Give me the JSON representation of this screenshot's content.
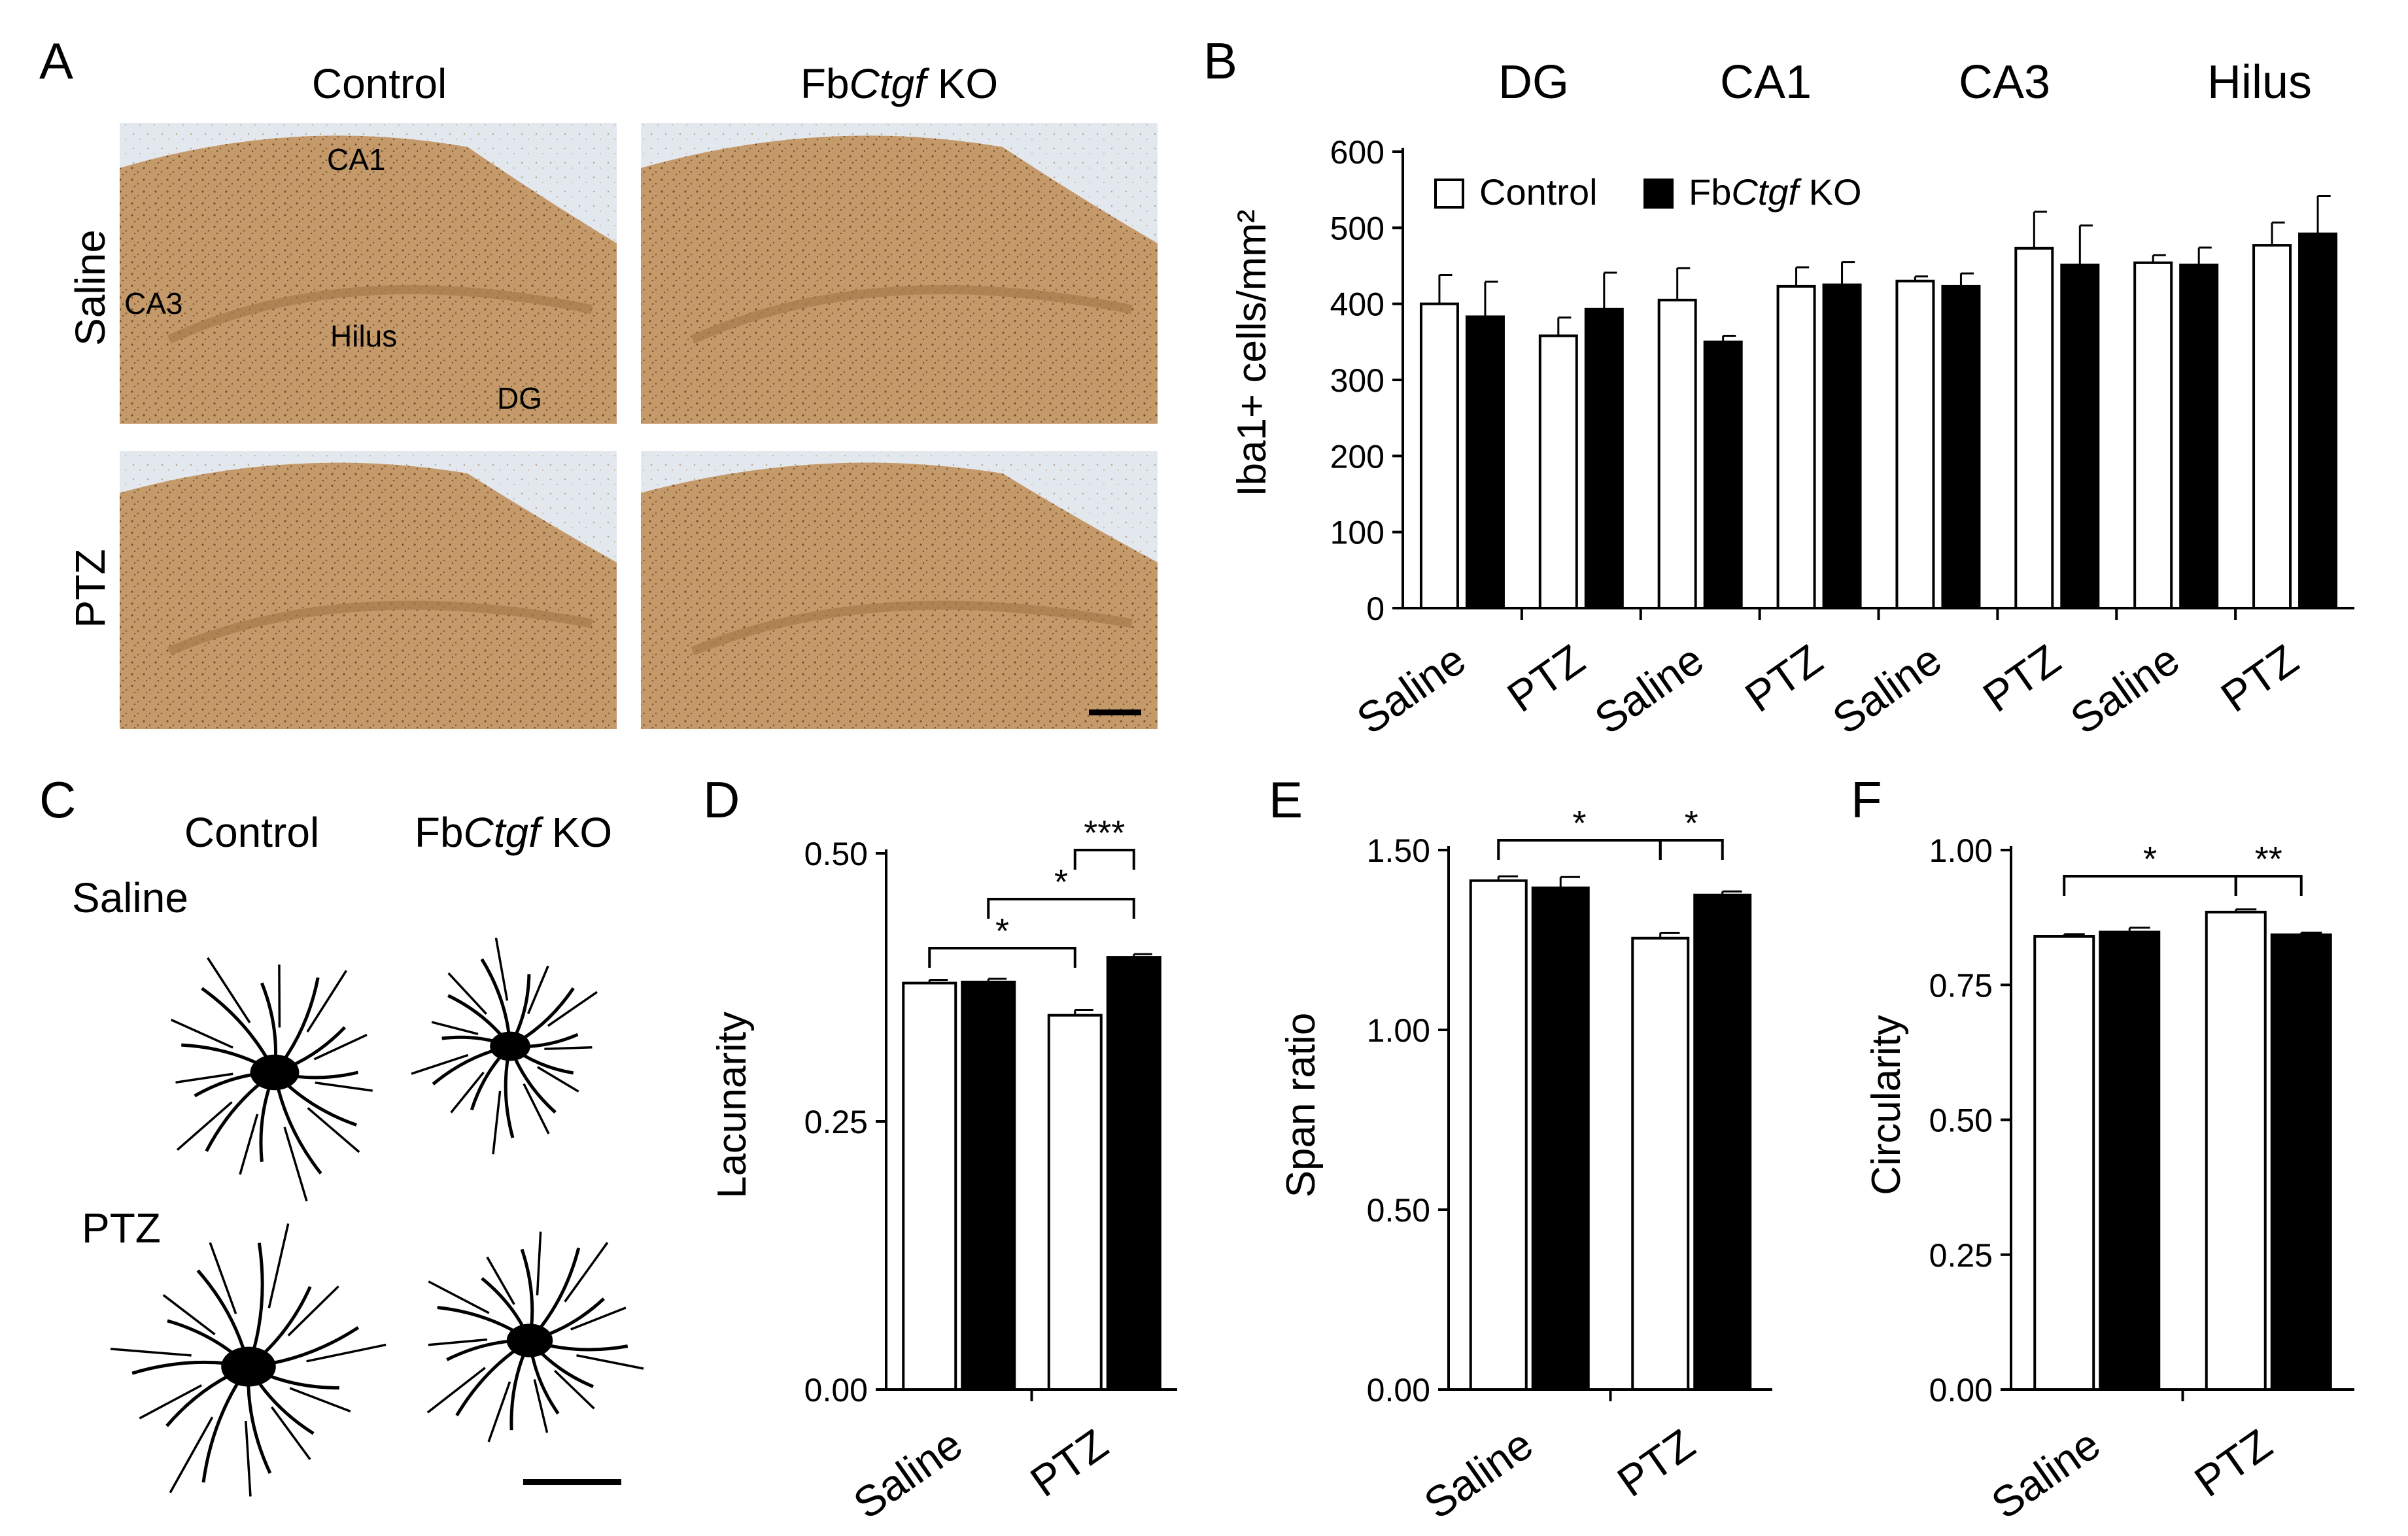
{
  "figure": {
    "panels": [
      "A",
      "B",
      "C",
      "D",
      "E",
      "F"
    ]
  },
  "panel_a": {
    "columns": [
      "Control",
      "FbCtgf KO"
    ],
    "rows": [
      "Saline",
      "PTZ"
    ],
    "region_labels": [
      "CA1",
      "CA3",
      "Hilus",
      "DG"
    ],
    "stain_color": "#b98c5a",
    "background_color": "#dfe6ee"
  },
  "panel_c": {
    "columns": [
      "Control",
      "FbCtgf KO"
    ],
    "rows": [
      "Saline",
      "PTZ"
    ]
  },
  "legend": {
    "entries": [
      {
        "label_prefix": "",
        "label_italic": "",
        "label_suffix": "Control",
        "color": "#ffffff"
      },
      {
        "label_prefix": "Fb",
        "label_italic": "Ctgf",
        "label_suffix": " KO",
        "color": "#000000"
      }
    ]
  },
  "chart_data": [
    {
      "panel": "B",
      "type": "bar",
      "ylabel": "Iba1+ cells/mm²",
      "ylim": [
        0,
        600
      ],
      "yticks": [
        0,
        100,
        200,
        300,
        400,
        500,
        600
      ],
      "groups": [
        "DG",
        "CA1",
        "CA3",
        "Hilus"
      ],
      "categories": [
        "Saline",
        "PTZ",
        "Saline",
        "PTZ",
        "Saline",
        "PTZ",
        "Saline",
        "PTZ"
      ],
      "series": [
        {
          "name": "Control",
          "color": "#ffffff",
          "values": [
            400,
            358,
            405,
            423,
            430,
            473,
            454,
            477
          ],
          "errors": [
            38,
            24,
            42,
            25,
            6,
            48,
            10,
            30
          ]
        },
        {
          "name": "FbCtgf KO",
          "color": "#000000",
          "values": [
            383,
            393,
            350,
            425,
            423,
            451,
            451,
            492
          ],
          "errors": [
            46,
            48,
            8,
            30,
            17,
            52,
            23,
            50
          ]
        }
      ],
      "legend_position": "top-left",
      "grid": false
    },
    {
      "panel": "D",
      "type": "bar",
      "ylabel": "Lacunarity",
      "ylim": [
        0,
        0.5
      ],
      "yticks": [
        "0.00",
        "0.25",
        "0.50"
      ],
      "categories": [
        "Saline",
        "PTZ"
      ],
      "series": [
        {
          "name": "Control",
          "color": "#ffffff",
          "values": [
            0.379,
            0.349
          ],
          "errors": [
            0.003,
            0.005
          ]
        },
        {
          "name": "FbCtgf KO",
          "color": "#000000",
          "values": [
            0.38,
            0.403
          ],
          "errors": [
            0.003,
            0.003
          ]
        }
      ],
      "significance": [
        {
          "from": [
            0,
            0
          ],
          "to": [
            1,
            0
          ],
          "label": "*"
        },
        {
          "from": [
            0,
            1
          ],
          "to": [
            1,
            1
          ],
          "label": "*"
        },
        {
          "from": [
            1,
            0
          ],
          "to": [
            1,
            1
          ],
          "label": "***"
        }
      ],
      "grid": false
    },
    {
      "panel": "E",
      "type": "bar",
      "ylabel": "Span ratio",
      "ylim": [
        0,
        1.5
      ],
      "yticks": [
        "0.00",
        "0.50",
        "1.00",
        "1.50"
      ],
      "categories": [
        "Saline",
        "PTZ"
      ],
      "series": [
        {
          "name": "Control",
          "color": "#ffffff",
          "values": [
            1.415,
            1.255
          ],
          "errors": [
            0.012,
            0.015
          ]
        },
        {
          "name": "FbCtgf KO",
          "color": "#000000",
          "values": [
            1.395,
            1.375
          ],
          "errors": [
            0.03,
            0.01
          ]
        }
      ],
      "significance": [
        {
          "from": [
            0,
            0
          ],
          "to": [
            1,
            0
          ],
          "label": "*"
        },
        {
          "from": [
            1,
            0
          ],
          "to": [
            1,
            1
          ],
          "label": "*"
        }
      ],
      "grid": false
    },
    {
      "panel": "F",
      "type": "bar",
      "ylabel": "Circularity",
      "ylim": [
        0,
        1
      ],
      "yticks": [
        "0.00",
        "0.25",
        "0.50",
        "0.75",
        "1.00"
      ],
      "categories": [
        "Saline",
        "PTZ"
      ],
      "series": [
        {
          "name": "Control",
          "color": "#ffffff",
          "values": [
            0.84,
            0.885
          ],
          "errors": [
            0.004,
            0.005
          ]
        },
        {
          "name": "FbCtgf KO",
          "color": "#000000",
          "values": [
            0.848,
            0.843
          ],
          "errors": [
            0.008,
            0.004
          ]
        }
      ],
      "significance": [
        {
          "from": [
            0,
            0
          ],
          "to": [
            1,
            0
          ],
          "label": "*"
        },
        {
          "from": [
            1,
            0
          ],
          "to": [
            1,
            1
          ],
          "label": "**"
        }
      ],
      "grid": false
    }
  ]
}
